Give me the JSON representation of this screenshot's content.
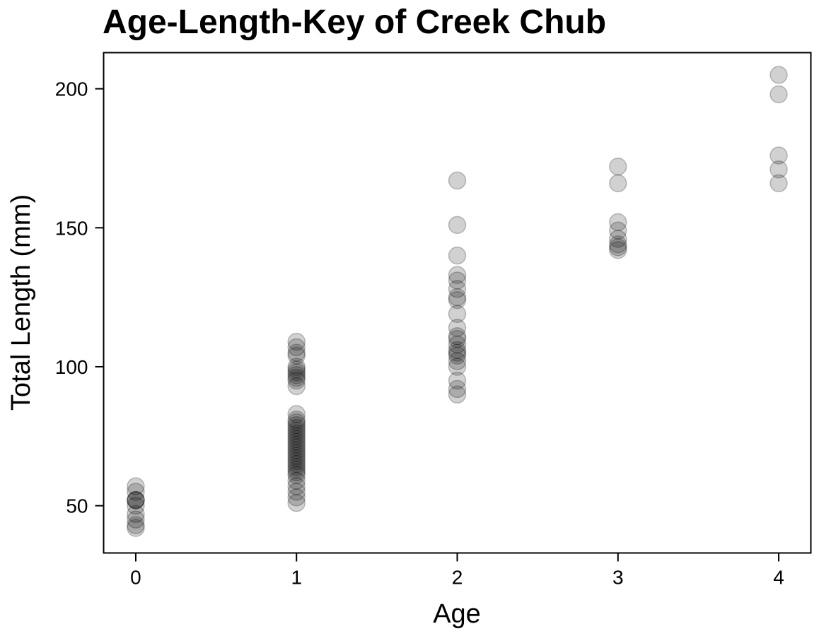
{
  "chart_data": {
    "type": "scatter",
    "title": "Age-Length-Key of Creek Chub",
    "xlabel": "Age",
    "ylabel": "Total Length (mm)",
    "xlim": [
      -0.2,
      4.2
    ],
    "ylim": [
      33,
      213
    ],
    "xticks": [
      0,
      1,
      2,
      3,
      4
    ],
    "yticks": [
      50,
      100,
      150,
      200
    ],
    "grid": false,
    "legend": "none",
    "marker_color": "#000000",
    "marker_opacity": 0.18,
    "points": [
      {
        "x": 0,
        "y": 42
      },
      {
        "x": 0,
        "y": 43
      },
      {
        "x": 0,
        "y": 45
      },
      {
        "x": 0,
        "y": 47
      },
      {
        "x": 0,
        "y": 50
      },
      {
        "x": 0,
        "y": 52
      },
      {
        "x": 0,
        "y": 52
      },
      {
        "x": 0,
        "y": 52
      },
      {
        "x": 0,
        "y": 55
      },
      {
        "x": 0,
        "y": 57
      },
      {
        "x": 1,
        "y": 51
      },
      {
        "x": 1,
        "y": 53
      },
      {
        "x": 1,
        "y": 55
      },
      {
        "x": 1,
        "y": 57
      },
      {
        "x": 1,
        "y": 59
      },
      {
        "x": 1,
        "y": 61
      },
      {
        "x": 1,
        "y": 62
      },
      {
        "x": 1,
        "y": 63
      },
      {
        "x": 1,
        "y": 64
      },
      {
        "x": 1,
        "y": 65
      },
      {
        "x": 1,
        "y": 66
      },
      {
        "x": 1,
        "y": 67
      },
      {
        "x": 1,
        "y": 68
      },
      {
        "x": 1,
        "y": 69
      },
      {
        "x": 1,
        "y": 70
      },
      {
        "x": 1,
        "y": 71
      },
      {
        "x": 1,
        "y": 72
      },
      {
        "x": 1,
        "y": 73
      },
      {
        "x": 1,
        "y": 74
      },
      {
        "x": 1,
        "y": 75
      },
      {
        "x": 1,
        "y": 76
      },
      {
        "x": 1,
        "y": 77
      },
      {
        "x": 1,
        "y": 78
      },
      {
        "x": 1,
        "y": 79
      },
      {
        "x": 1,
        "y": 80
      },
      {
        "x": 1,
        "y": 81
      },
      {
        "x": 1,
        "y": 83
      },
      {
        "x": 1,
        "y": 93
      },
      {
        "x": 1,
        "y": 95
      },
      {
        "x": 1,
        "y": 96
      },
      {
        "x": 1,
        "y": 97
      },
      {
        "x": 1,
        "y": 98
      },
      {
        "x": 1,
        "y": 99
      },
      {
        "x": 1,
        "y": 100
      },
      {
        "x": 1,
        "y": 104
      },
      {
        "x": 1,
        "y": 105
      },
      {
        "x": 1,
        "y": 107
      },
      {
        "x": 1,
        "y": 109
      },
      {
        "x": 2,
        "y": 90
      },
      {
        "x": 2,
        "y": 92
      },
      {
        "x": 2,
        "y": 95
      },
      {
        "x": 2,
        "y": 100
      },
      {
        "x": 2,
        "y": 102
      },
      {
        "x": 2,
        "y": 104
      },
      {
        "x": 2,
        "y": 105
      },
      {
        "x": 2,
        "y": 106
      },
      {
        "x": 2,
        "y": 108
      },
      {
        "x": 2,
        "y": 110
      },
      {
        "x": 2,
        "y": 111
      },
      {
        "x": 2,
        "y": 114
      },
      {
        "x": 2,
        "y": 119
      },
      {
        "x": 2,
        "y": 124
      },
      {
        "x": 2,
        "y": 125
      },
      {
        "x": 2,
        "y": 128
      },
      {
        "x": 2,
        "y": 131
      },
      {
        "x": 2,
        "y": 133
      },
      {
        "x": 2,
        "y": 140
      },
      {
        "x": 2,
        "y": 151
      },
      {
        "x": 2,
        "y": 167
      },
      {
        "x": 3,
        "y": 142
      },
      {
        "x": 3,
        "y": 143
      },
      {
        "x": 3,
        "y": 144
      },
      {
        "x": 3,
        "y": 146
      },
      {
        "x": 3,
        "y": 149
      },
      {
        "x": 3,
        "y": 152
      },
      {
        "x": 3,
        "y": 166
      },
      {
        "x": 3,
        "y": 172
      },
      {
        "x": 4,
        "y": 166
      },
      {
        "x": 4,
        "y": 171
      },
      {
        "x": 4,
        "y": 176
      },
      {
        "x": 4,
        "y": 198
      },
      {
        "x": 4,
        "y": 205
      }
    ]
  }
}
